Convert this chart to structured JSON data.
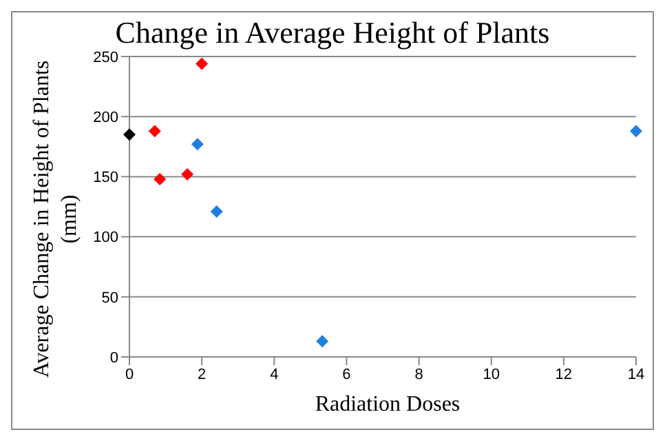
{
  "chart_data": {
    "type": "scatter",
    "title": "Change in Average Height of Plants",
    "xlabel": "Radiation Doses",
    "ylabel": "Average  Change in Height of Plants (mm)",
    "series": [
      {
        "color": "#000000",
        "x": [
          0
        ],
        "values": [
          185
        ]
      },
      {
        "color": "#ff0000",
        "x": [
          0.7,
          0.84,
          1.6,
          2.0
        ],
        "values": [
          188,
          148,
          152,
          244
        ]
      },
      {
        "color": "#1e7fe0",
        "x": [
          1.88,
          2.41,
          5.33,
          14
        ],
        "values": [
          177,
          121,
          13,
          188
        ]
      }
    ],
    "xlim": [
      0,
      14
    ],
    "xticks": [
      0,
      2,
      4,
      6,
      8,
      10,
      12,
      14
    ],
    "ylim": [
      0,
      250
    ],
    "yticks": [
      0,
      50,
      100,
      150,
      200,
      250
    ],
    "grid": "y",
    "legend": false,
    "marker": "diamond"
  }
}
